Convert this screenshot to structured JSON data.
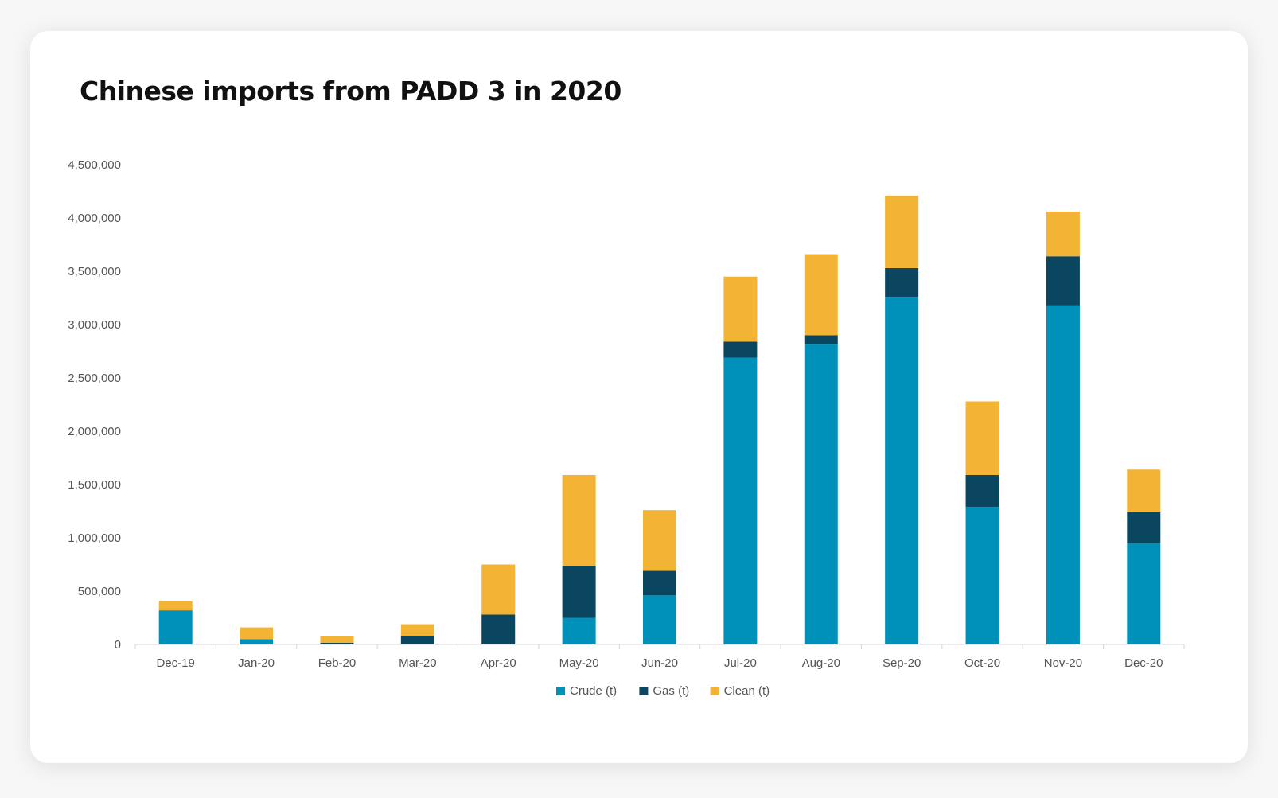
{
  "chart_data": {
    "type": "bar",
    "stacked": true,
    "title": "Chinese imports from PADD 3 in 2020",
    "xlabel": "",
    "ylabel": "",
    "categories": [
      "Dec-19",
      "Jan-20",
      "Feb-20",
      "Mar-20",
      "Apr-20",
      "May-20",
      "Jun-20",
      "Jul-20",
      "Aug-20",
      "Sep-20",
      "Oct-20",
      "Nov-20",
      "Dec-20"
    ],
    "series": [
      {
        "name": "Crude (t)",
        "color": "#0091BA",
        "values": [
          320000,
          50000,
          0,
          0,
          0,
          250000,
          460000,
          2690000,
          2820000,
          3260000,
          1290000,
          3180000,
          950000
        ]
      },
      {
        "name": "Gas (t)",
        "color": "#0A4660",
        "values": [
          0,
          0,
          15000,
          80000,
          280000,
          490000,
          230000,
          150000,
          80000,
          270000,
          300000,
          460000,
          290000
        ]
      },
      {
        "name": "Clean (t)",
        "color": "#F3B335",
        "values": [
          85000,
          110000,
          60000,
          110000,
          470000,
          850000,
          570000,
          610000,
          760000,
          680000,
          690000,
          420000,
          400000
        ]
      }
    ],
    "ylim": [
      0,
      4500000
    ],
    "yticks": [
      0,
      500000,
      1000000,
      1500000,
      2000000,
      2500000,
      3000000,
      3500000,
      4000000,
      4500000
    ],
    "ytick_labels": [
      "0",
      "500,000",
      "1,000,000",
      "1,500,000",
      "2,000,000",
      "2,500,000",
      "3,000,000",
      "3,500,000",
      "4,000,000",
      "4,500,000"
    ],
    "grid": false,
    "legend": "bottom-center"
  }
}
